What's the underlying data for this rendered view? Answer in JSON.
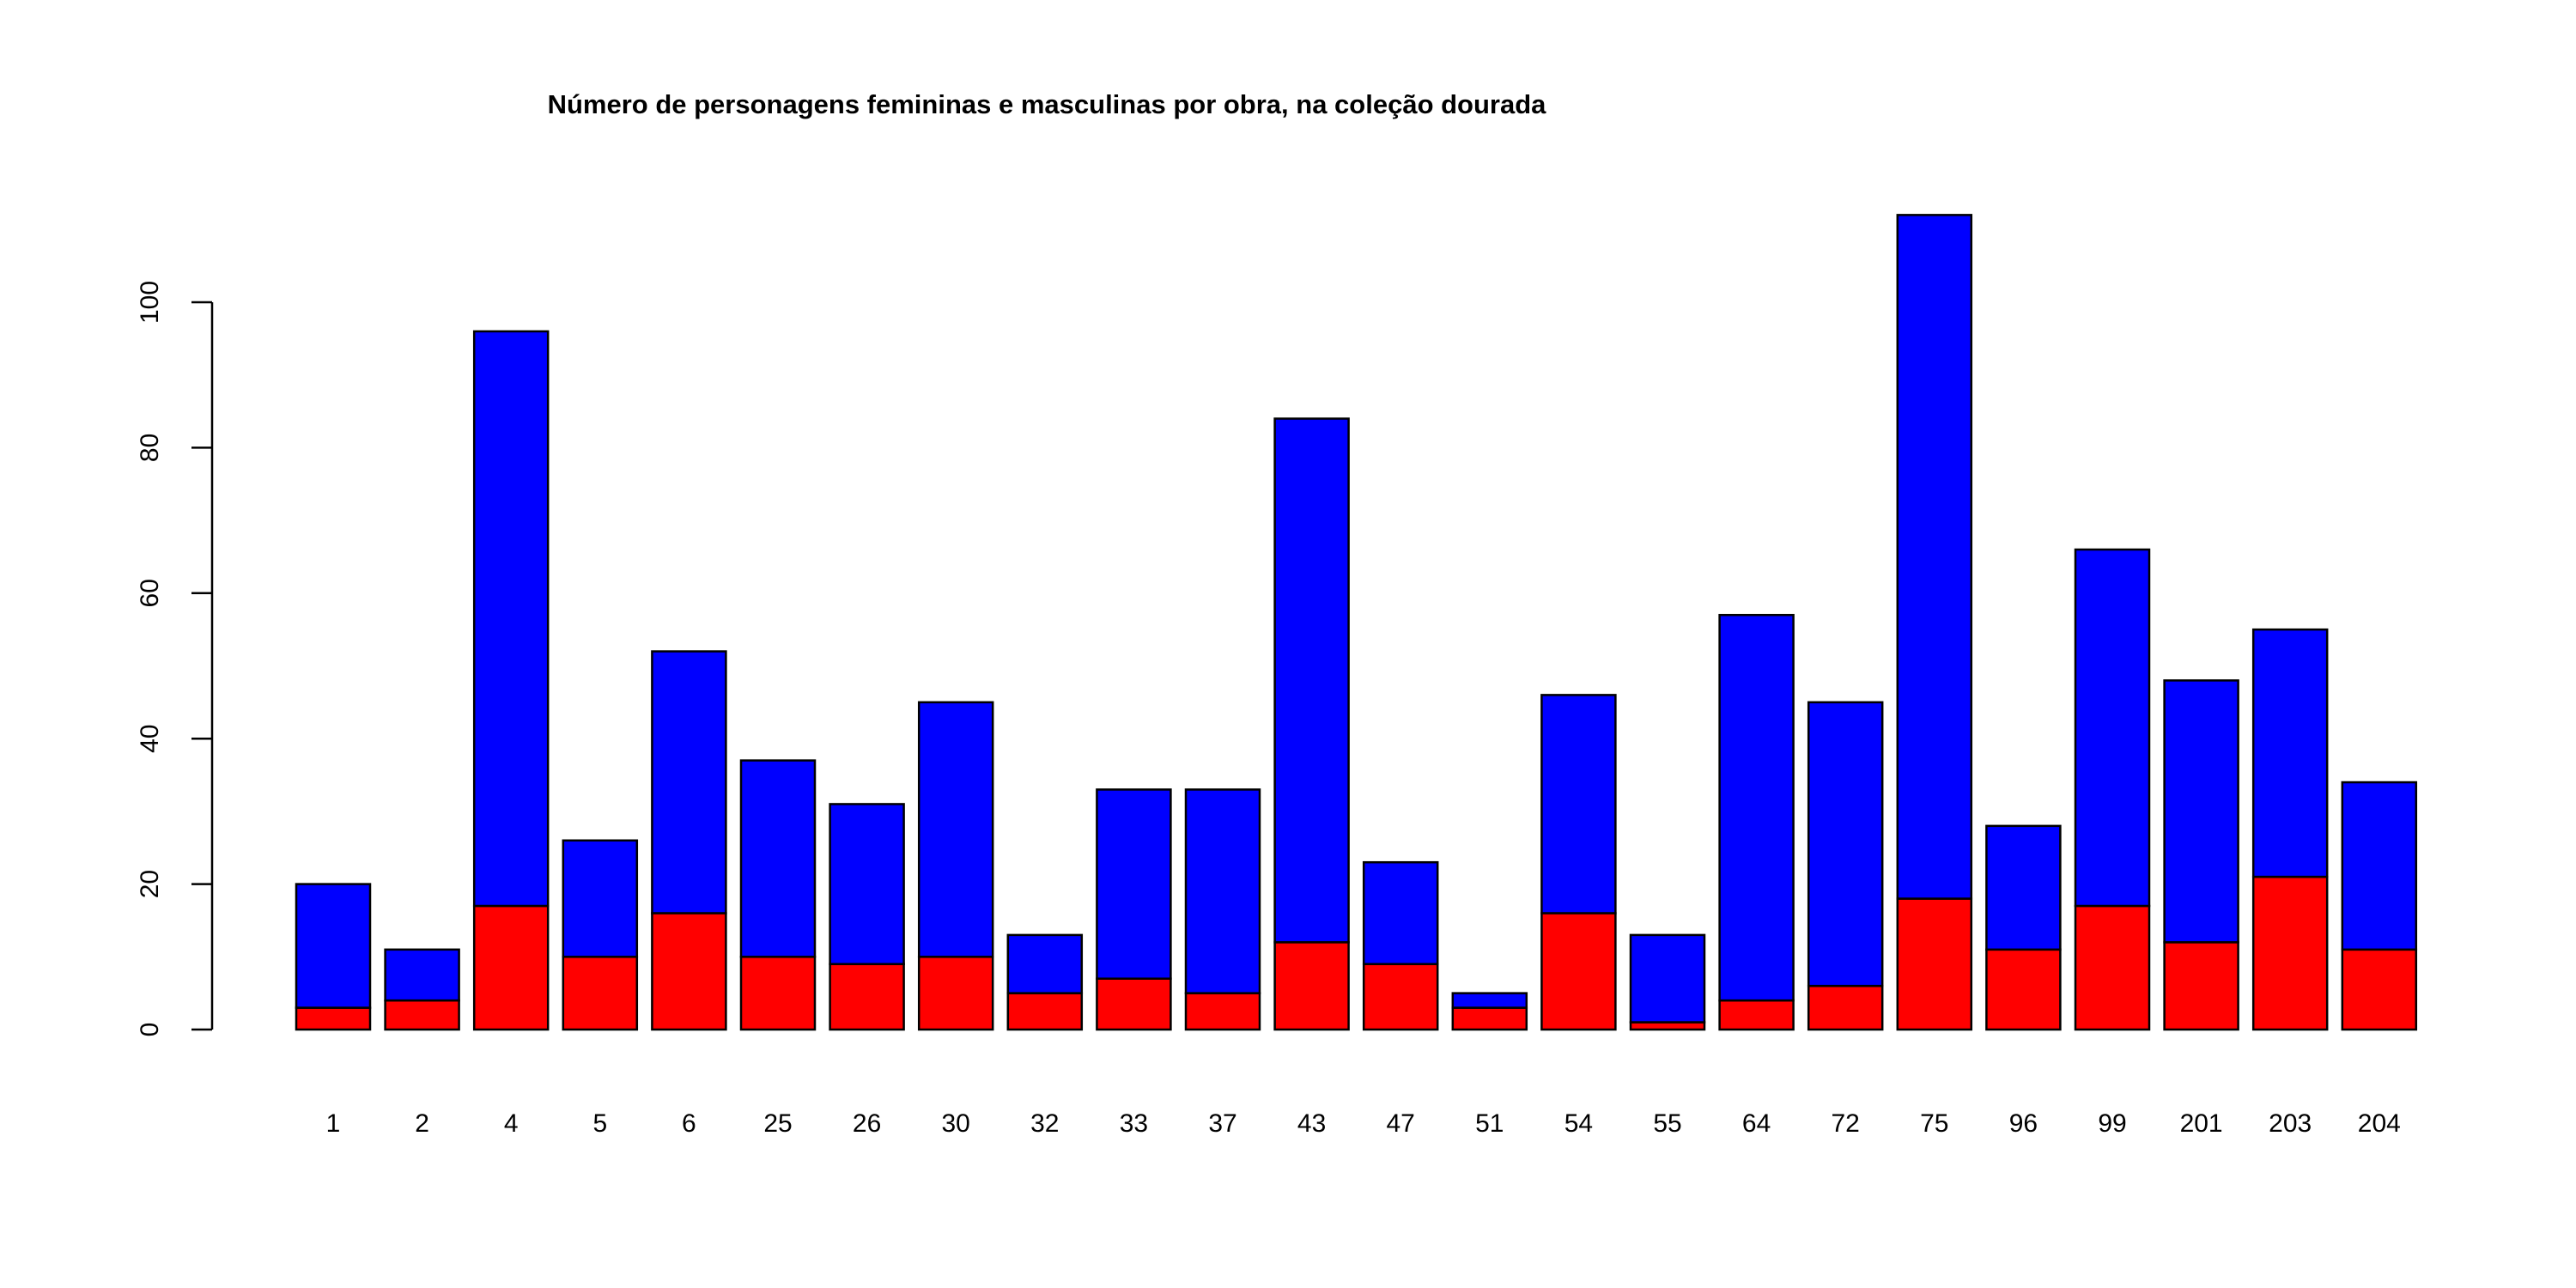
{
  "chart_data": {
    "type": "bar",
    "stacked": true,
    "title": "Número de personagens femininas e masculinas por obra, na coleção dourada",
    "xlabel": "",
    "ylabel": "",
    "categories": [
      "1",
      "2",
      "4",
      "5",
      "6",
      "25",
      "26",
      "30",
      "32",
      "33",
      "37",
      "43",
      "47",
      "51",
      "54",
      "55",
      "64",
      "72",
      "75",
      "96",
      "99",
      "201",
      "203",
      "204"
    ],
    "series": [
      {
        "color": "#ff0000",
        "values": [
          3,
          4,
          17,
          10,
          16,
          10,
          9,
          10,
          5,
          7,
          5,
          12,
          9,
          3,
          16,
          1,
          4,
          6,
          18,
          11,
          17,
          12,
          21,
          11
        ]
      },
      {
        "color": "#0000ff",
        "values": [
          17,
          7,
          79,
          16,
          36,
          27,
          22,
          35,
          8,
          26,
          28,
          72,
          14,
          2,
          30,
          12,
          53,
          39,
          94,
          17,
          49,
          36,
          34,
          23
        ]
      }
    ],
    "totals": [
      20,
      11,
      96,
      26,
      52,
      37,
      31,
      45,
      13,
      33,
      33,
      84,
      23,
      5,
      46,
      13,
      57,
      45,
      112,
      28,
      66,
      48,
      55,
      34
    ],
    "yticks": [
      0,
      20,
      40,
      60,
      80,
      100
    ],
    "ylim": [
      0,
      112
    ],
    "grid": false,
    "legend": "none"
  }
}
